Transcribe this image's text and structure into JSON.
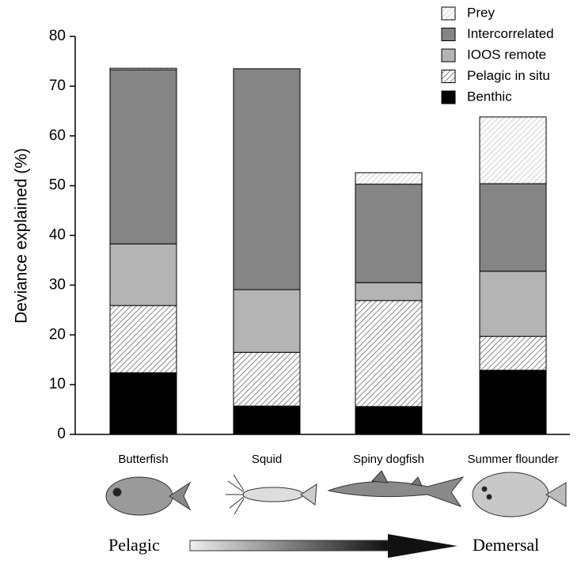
{
  "chart_data": {
    "type": "stacked_bar",
    "ylabel": "Deviance explained (%)",
    "categories": [
      "Butterfish",
      "Squid",
      "Spiny dogfish",
      "Summer flounder"
    ],
    "series": [
      {
        "name": "Benthic",
        "color": "#000000",
        "hatch": false,
        "values": [
          12.4,
          5.7,
          5.6,
          12.9
        ]
      },
      {
        "name": "Pelagic in situ",
        "color": "#555555",
        "hatch": true,
        "values": [
          13.5,
          10.8,
          21.3,
          6.8
        ]
      },
      {
        "name": "IOOS remote",
        "color": "#b4b4b4",
        "hatch": false,
        "values": [
          12.4,
          12.6,
          3.6,
          13.1
        ]
      },
      {
        "name": "Intercorrelated",
        "color": "#858585",
        "hatch": false,
        "values": [
          35.0,
          44.4,
          19.8,
          17.6
        ]
      },
      {
        "name": "Prey",
        "color": "#bbbbbb",
        "hatch": true,
        "values": [
          0.3,
          0,
          2.3,
          13.4
        ]
      }
    ],
    "ylim": [
      0,
      80
    ],
    "yticks": [
      0,
      10,
      20,
      30,
      40,
      50,
      60,
      70,
      80
    ],
    "annotations": [
      "Pelagic",
      "Demersal"
    ]
  }
}
